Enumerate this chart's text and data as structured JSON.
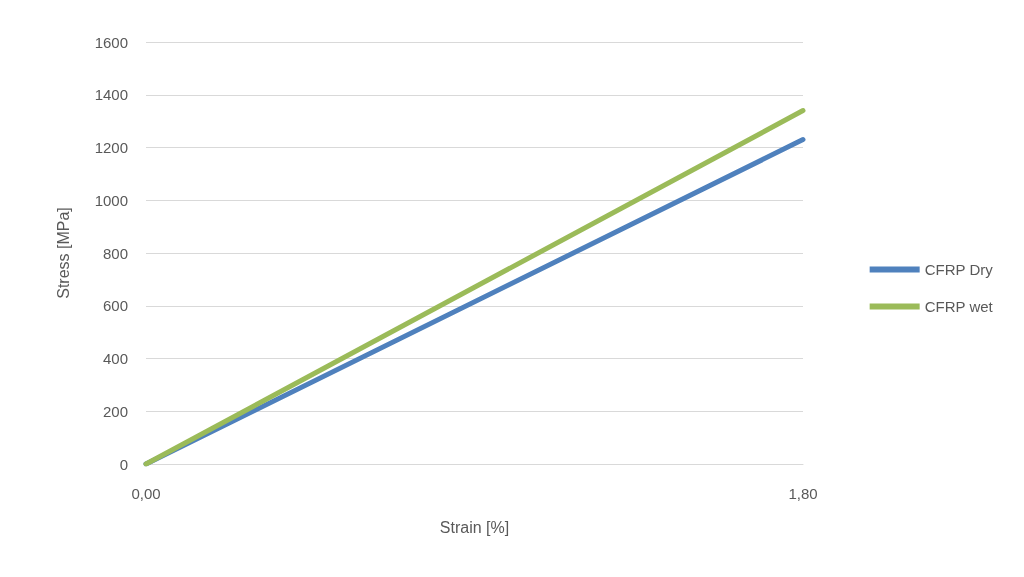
{
  "chart_data": {
    "type": "line",
    "xlabel": "Strain [%]",
    "ylabel": "Stress [MPa]",
    "xlim": [
      0,
      1.8
    ],
    "xticks": [
      {
        "value": 0,
        "label": "0,00"
      },
      {
        "value": 1.8,
        "label": "1,80"
      }
    ],
    "ylim": [
      0,
      1600
    ],
    "yticks": [
      0,
      200,
      400,
      600,
      800,
      1000,
      1200,
      1400,
      1600
    ],
    "x": [
      0,
      1.8
    ],
    "series": [
      {
        "name": "CFRP Dry",
        "color": "#4f81bd",
        "values": [
          0,
          1230
        ]
      },
      {
        "name": "CFRP wet",
        "color": "#9bbb59",
        "values": [
          0,
          1340
        ]
      }
    ],
    "grid": "y",
    "legend": "right",
    "marker": "none",
    "line_style": "solid"
  }
}
